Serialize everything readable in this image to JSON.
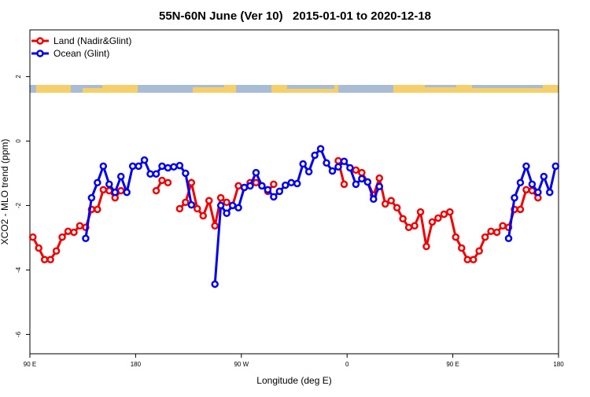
{
  "chart_data": {
    "type": "line",
    "title": "55N-60N June (Ver 10)   2015-01-01 to 2020-12-18",
    "xlabel": "Longitude (deg E)",
    "ylabel": "XCO2 - MLO trend (ppm)",
    "x": [
      92.5,
      97.5,
      102.5,
      107.5,
      112.5,
      117.5,
      122.5,
      127.5,
      132.5,
      137.5,
      142.5,
      147.5,
      152.5,
      157.5,
      162.5,
      167.5,
      172.5,
      177.5,
      182.5,
      187.5,
      192.5,
      197.5,
      202.5,
      207.5,
      212.5,
      217.5,
      222.5,
      227.5,
      232.5,
      237.5,
      242.5,
      247.5,
      252.5,
      257.5,
      262.5,
      267.5,
      272.5,
      277.5,
      282.5,
      287.5,
      292.5,
      297.5,
      302.5,
      307.5,
      312.5,
      317.5,
      322.5,
      327.5,
      332.5,
      337.5,
      342.5,
      347.5,
      352.5,
      357.5,
      362.5,
      367.5,
      372.5,
      377.5,
      382.5,
      387.5,
      392.5,
      397.5,
      402.5,
      407.5,
      412.5,
      417.5,
      422.5,
      427.5,
      432.5,
      437.5,
      442.5,
      447.5,
      452.5,
      457.5,
      462.5,
      467.5,
      472.5,
      477.5,
      482.5,
      487.5,
      492.5,
      497.5,
      502.5,
      507.5,
      512.5,
      517.5,
      522.5,
      527.5,
      532.5,
      537.5
    ],
    "series": [
      {
        "name": "Land (Nadir&Glint)",
        "color": "#ee0000",
        "values": [
          -2.98,
          -3.32,
          -3.68,
          -3.68,
          -3.41,
          -2.98,
          -2.8,
          -2.83,
          -2.63,
          -2.68,
          -2.12,
          -2.12,
          -1.51,
          -1.54,
          -1.76,
          -1.54,
          null,
          null,
          null,
          null,
          null,
          -1.54,
          -1.22,
          -1.29,
          null,
          -2.1,
          -1.9,
          -1.29,
          -2.1,
          -2.32,
          -1.85,
          -2.63,
          -1.76,
          -1.9,
          -2.0,
          -1.39,
          -1.44,
          -1.29,
          -1.29,
          -1.39,
          -1.56,
          -1.34,
          null,
          null,
          null,
          null,
          null,
          null,
          null,
          null,
          null,
          null,
          -0.61,
          -1.34,
          null,
          -0.9,
          -0.98,
          -1.27,
          -1.68,
          -1.15,
          -1.95,
          -1.85,
          -2.07,
          -2.41,
          -2.68,
          -2.63,
          -2.2,
          -3.27,
          -2.51,
          -2.39,
          -2.27,
          -2.2,
          -2.98,
          -3.32,
          -3.68,
          -3.68,
          -3.41,
          -2.98,
          -2.8,
          -2.83,
          -2.63,
          -2.68,
          -2.12,
          -2.12,
          -1.51,
          -1.54,
          -1.76,
          null,
          null,
          null
        ]
      },
      {
        "name": "Ocean (Glint)",
        "color": "#0000ee",
        "values": [
          null,
          null,
          null,
          null,
          null,
          null,
          null,
          null,
          null,
          -3.02,
          -1.76,
          -1.29,
          -0.78,
          -1.34,
          -1.59,
          -1.1,
          -1.59,
          -0.78,
          -0.78,
          -0.59,
          -1.02,
          -1.02,
          -0.78,
          -0.83,
          -0.8,
          -0.76,
          -1.0,
          -1.98,
          null,
          null,
          null,
          -4.44,
          -2.0,
          -2.24,
          -2.0,
          -2.07,
          -1.44,
          -1.39,
          -0.98,
          -1.39,
          -1.51,
          -1.73,
          -1.56,
          -1.37,
          -1.29,
          -1.32,
          -0.71,
          -0.95,
          -0.44,
          -0.24,
          -0.68,
          -0.93,
          -0.8,
          -0.63,
          -0.83,
          -1.34,
          -1.17,
          -1.27,
          -1.8,
          -1.41,
          null,
          null,
          null,
          null,
          null,
          null,
          null,
          null,
          null,
          null,
          null,
          null,
          null,
          null,
          null,
          null,
          null,
          null,
          null,
          null,
          null,
          -3.02,
          -1.76,
          -1.29,
          -0.78,
          -1.34,
          -1.59,
          -1.1,
          -1.59,
          -0.78
        ]
      }
    ],
    "xlim": [
      90,
      540
    ],
    "xticks": [
      {
        "value": 90,
        "label": "90 E"
      },
      180,
      {
        "value": 270,
        "label": "90 W"
      },
      {
        "value": 360,
        "label": "0"
      },
      {
        "value": 450,
        "label": "90 E"
      },
      {
        "value": 540,
        "label": "180"
      }
    ],
    "ylim": [
      -6.6,
      3.45
    ],
    "yticks": [
      -6,
      -4,
      -2,
      0,
      2
    ],
    "legend": "top-left",
    "grid": false
  }
}
